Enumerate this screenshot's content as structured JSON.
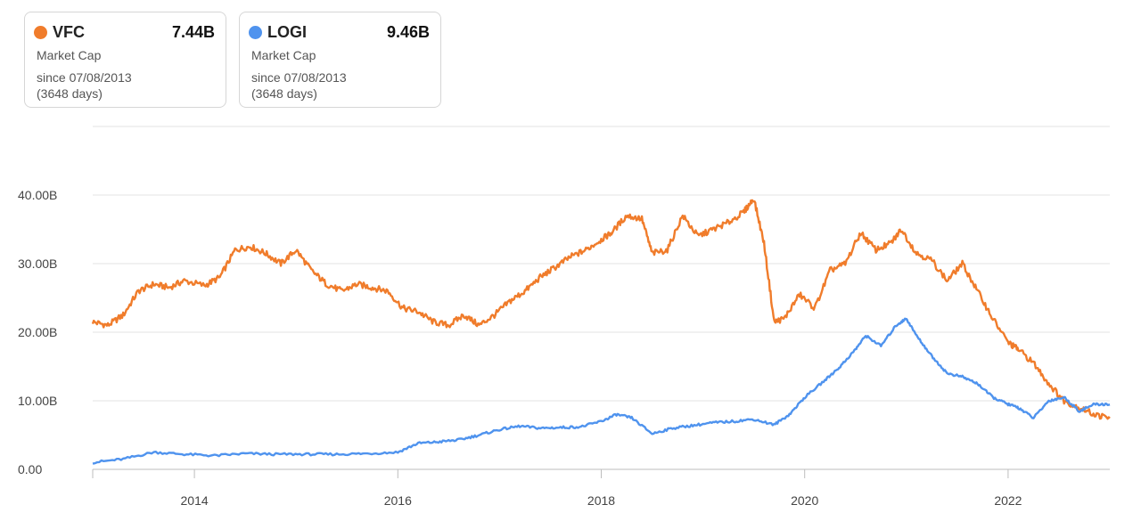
{
  "legend": [
    {
      "ticker": "VFC",
      "value": "7.44B",
      "metric": "Market Cap",
      "since": "since 07/08/2013",
      "days": "(3648 days)",
      "color": "#f07c2b"
    },
    {
      "ticker": "LOGI",
      "value": "9.46B",
      "metric": "Market Cap",
      "since": "since 07/08/2013",
      "days": "(3648 days)",
      "color": "#4f93ee"
    }
  ],
  "chart_data": {
    "type": "line",
    "y_tick_labels": [
      "0.00",
      "10.00B",
      "20.00B",
      "30.00B",
      "40.00B"
    ],
    "x_tick_labels": [
      "2014",
      "2016",
      "2018",
      "2020",
      "2022"
    ],
    "x_ticks": [
      2014,
      2016,
      2018,
      2020,
      2022
    ],
    "xlim": [
      2013.0,
      2023.0
    ],
    "ylim": [
      0,
      50
    ],
    "grid": true,
    "series": [
      {
        "name": "VFC",
        "color": "#f07c2b",
        "x": [
          2013.0,
          2013.15,
          2013.3,
          2013.45,
          2013.6,
          2013.75,
          2013.9,
          2014.1,
          2014.25,
          2014.4,
          2014.55,
          2014.7,
          2014.85,
          2015.0,
          2015.15,
          2015.3,
          2015.45,
          2015.6,
          2015.75,
          2015.9,
          2016.05,
          2016.2,
          2016.35,
          2016.5,
          2016.65,
          2016.8,
          2016.95,
          2017.1,
          2017.25,
          2017.4,
          2017.55,
          2017.7,
          2017.85,
          2018.0,
          2018.1,
          2018.25,
          2018.4,
          2018.5,
          2018.65,
          2018.8,
          2018.95,
          2019.1,
          2019.25,
          2019.4,
          2019.5,
          2019.6,
          2019.7,
          2019.8,
          2019.95,
          2020.1,
          2020.25,
          2020.4,
          2020.55,
          2020.7,
          2020.85,
          2020.95,
          2021.1,
          2021.25,
          2021.4,
          2021.55,
          2021.7,
          2021.85,
          2022.0,
          2022.1,
          2022.25,
          2022.4,
          2022.55,
          2022.7,
          2022.85,
          2023.0
        ],
        "values": [
          21.5,
          21.0,
          22.5,
          26.0,
          27.0,
          26.5,
          27.5,
          26.8,
          28.0,
          32.0,
          32.5,
          31.5,
          30.0,
          32.0,
          29.0,
          27.0,
          26.0,
          27.0,
          26.5,
          26.0,
          23.5,
          23.0,
          21.5,
          21.0,
          22.5,
          21.0,
          22.5,
          24.5,
          26.0,
          28.0,
          29.5,
          31.0,
          32.0,
          33.5,
          34.5,
          37.0,
          36.5,
          31.5,
          32.0,
          37.0,
          34.0,
          35.0,
          36.0,
          37.5,
          39.5,
          33.0,
          21.5,
          22.0,
          25.5,
          23.5,
          29.0,
          30.0,
          34.5,
          32.0,
          33.0,
          35.0,
          31.5,
          30.5,
          27.5,
          30.0,
          26.0,
          22.0,
          18.5,
          17.5,
          15.5,
          12.5,
          10.0,
          9.0,
          8.0,
          7.44
        ]
      },
      {
        "name": "LOGI",
        "color": "#4f93ee",
        "x": [
          2013.0,
          2013.3,
          2013.6,
          2013.9,
          2014.2,
          2014.5,
          2014.8,
          2015.1,
          2015.4,
          2015.7,
          2016.0,
          2016.2,
          2016.4,
          2016.6,
          2016.8,
          2017.0,
          2017.2,
          2017.4,
          2017.6,
          2017.8,
          2018.0,
          2018.15,
          2018.3,
          2018.5,
          2018.7,
          2018.9,
          2019.1,
          2019.3,
          2019.5,
          2019.7,
          2019.85,
          2020.0,
          2020.2,
          2020.35,
          2020.5,
          2020.6,
          2020.75,
          2020.9,
          2021.0,
          2021.1,
          2021.25,
          2021.4,
          2021.55,
          2021.7,
          2021.85,
          2022.0,
          2022.1,
          2022.25,
          2022.4,
          2022.55,
          2022.7,
          2022.85,
          2023.0
        ],
        "values": [
          1.0,
          1.5,
          2.5,
          2.2,
          2.0,
          2.3,
          2.2,
          2.2,
          2.2,
          2.3,
          2.5,
          3.8,
          4.0,
          4.3,
          5.0,
          5.8,
          6.3,
          6.0,
          6.1,
          6.2,
          7.0,
          8.0,
          7.5,
          5.2,
          6.0,
          6.4,
          6.8,
          7.0,
          7.3,
          6.5,
          8.0,
          10.5,
          13.0,
          15.0,
          17.5,
          19.5,
          18.0,
          21.0,
          22.0,
          19.5,
          16.5,
          14.0,
          13.5,
          12.5,
          10.5,
          9.5,
          9.0,
          7.5,
          10.0,
          10.5,
          8.5,
          9.5,
          9.46
        ]
      }
    ]
  }
}
